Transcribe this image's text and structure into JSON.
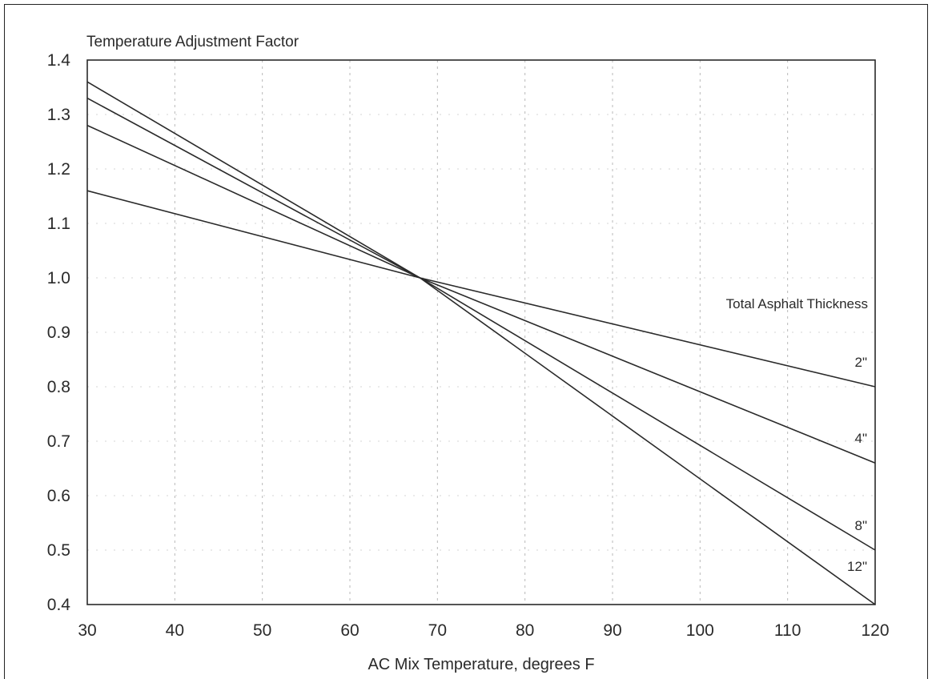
{
  "chart_data": {
    "type": "line",
    "title": "Temperature Adjustment Factor",
    "xlabel": "AC Mix Temperature, degrees F",
    "ylabel": "",
    "xlim": [
      30,
      120
    ],
    "ylim": [
      0.4,
      1.4
    ],
    "x_ticks": [
      30,
      40,
      50,
      60,
      70,
      80,
      90,
      100,
      110,
      120
    ],
    "y_ticks": [
      "0.4",
      "0.5",
      "0.6",
      "0.7",
      "0.8",
      "0.9",
      "1.0",
      "1.1",
      "1.2",
      "1.3",
      "1.4"
    ],
    "grid": true,
    "legend_title": "Total Asphalt Thickness",
    "series": [
      {
        "name": "2\"",
        "x": [
          30,
          68,
          120
        ],
        "y": [
          1.16,
          1.0,
          0.8
        ]
      },
      {
        "name": "4\"",
        "x": [
          30,
          68,
          120
        ],
        "y": [
          1.28,
          1.0,
          0.66
        ]
      },
      {
        "name": "8\"",
        "x": [
          30,
          68,
          120
        ],
        "y": [
          1.33,
          1.0,
          0.5
        ]
      },
      {
        "name": "12\"",
        "x": [
          30,
          68,
          120
        ],
        "y": [
          1.36,
          1.0,
          0.4
        ]
      }
    ]
  }
}
